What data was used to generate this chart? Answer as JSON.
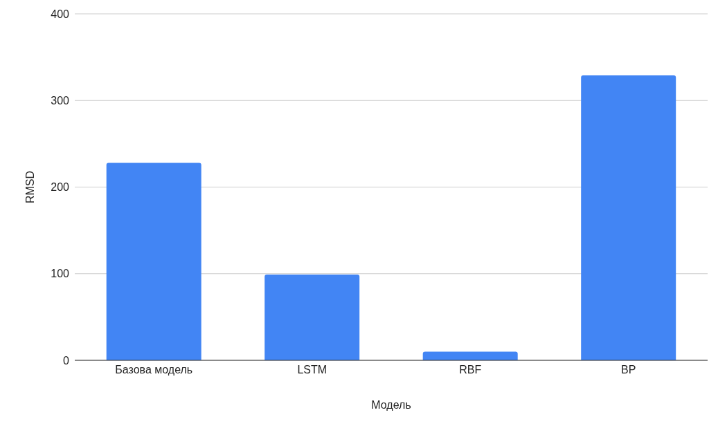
{
  "chart_data": {
    "type": "bar",
    "xlabel": "Модель",
    "ylabel": "RMSD",
    "categories": [
      "Базова модель",
      "LSTM",
      "RBF",
      "BP"
    ],
    "values": [
      228,
      99,
      10,
      329
    ],
    "color": "#4285f4",
    "ylim": [
      0,
      400
    ],
    "yticks": [
      0,
      100,
      200,
      300,
      400
    ],
    "grid": "y"
  }
}
